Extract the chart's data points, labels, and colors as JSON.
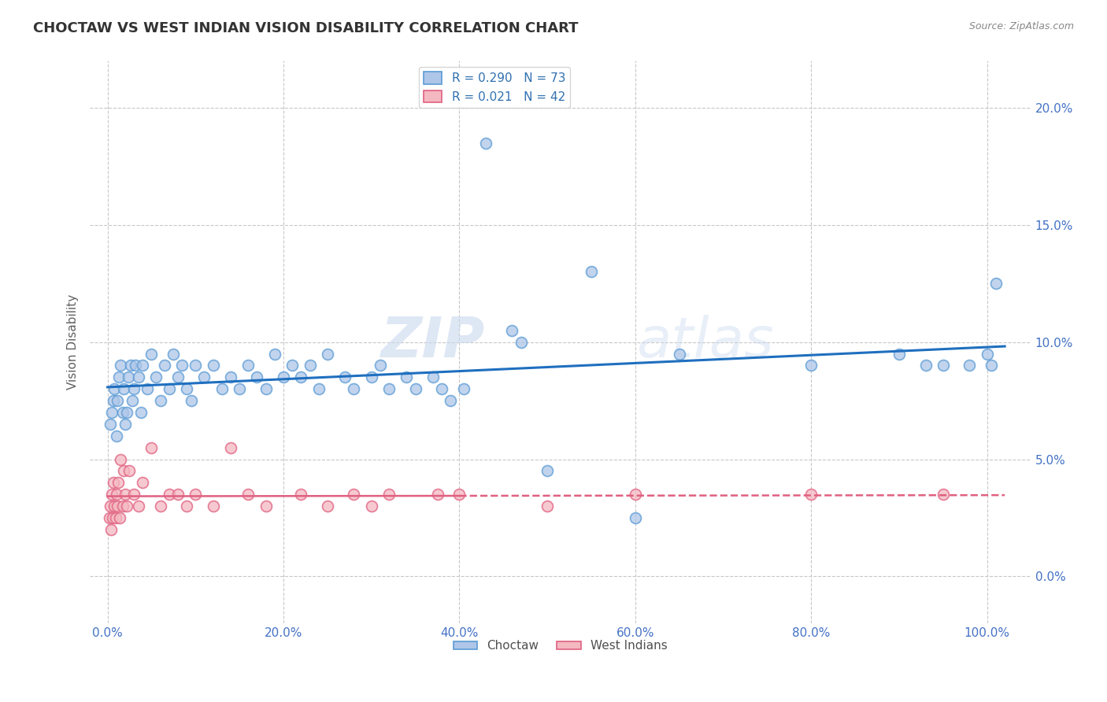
{
  "title": "CHOCTAW VS WEST INDIAN VISION DISABILITY CORRELATION CHART",
  "source": "Source: ZipAtlas.com",
  "xlabel_vals": [
    0,
    20,
    40,
    60,
    80,
    100
  ],
  "ylabel": "Vision Disability",
  "ylabel_vals": [
    0,
    5,
    10,
    15,
    20
  ],
  "xlim": [
    -2,
    105
  ],
  "ylim": [
    -2,
    22
  ],
  "legend_entry1": "R = 0.290   N = 73",
  "legend_entry2": "R = 0.021   N = 42",
  "legend_labels": [
    "Choctaw",
    "West Indians"
  ],
  "choctaw_x": [
    0.3,
    0.5,
    0.7,
    0.8,
    1.0,
    1.1,
    1.3,
    1.5,
    1.7,
    1.8,
    2.0,
    2.2,
    2.4,
    2.6,
    2.8,
    3.0,
    3.2,
    3.5,
    3.8,
    4.0,
    4.5,
    5.0,
    5.5,
    6.0,
    6.5,
    7.0,
    7.5,
    8.0,
    8.5,
    9.0,
    9.5,
    10.0,
    11.0,
    12.0,
    13.0,
    14.0,
    15.0,
    16.0,
    17.0,
    18.0,
    19.0,
    20.0,
    21.0,
    22.0,
    23.0,
    24.0,
    25.0,
    27.0,
    28.0,
    30.0,
    31.0,
    32.0,
    34.0,
    35.0,
    37.0,
    38.0,
    39.0,
    40.5,
    43.0,
    46.0,
    47.0,
    50.0,
    55.0,
    60.0,
    65.0,
    80.0,
    90.0,
    93.0,
    95.0,
    98.0,
    100.0,
    100.5,
    101.0
  ],
  "choctaw_y": [
    6.5,
    7.0,
    7.5,
    8.0,
    6.0,
    7.5,
    8.5,
    9.0,
    7.0,
    8.0,
    6.5,
    7.0,
    8.5,
    9.0,
    7.5,
    8.0,
    9.0,
    8.5,
    7.0,
    9.0,
    8.0,
    9.5,
    8.5,
    7.5,
    9.0,
    8.0,
    9.5,
    8.5,
    9.0,
    8.0,
    7.5,
    9.0,
    8.5,
    9.0,
    8.0,
    8.5,
    8.0,
    9.0,
    8.5,
    8.0,
    9.5,
    8.5,
    9.0,
    8.5,
    9.0,
    8.0,
    9.5,
    8.5,
    8.0,
    8.5,
    9.0,
    8.0,
    8.5,
    8.0,
    8.5,
    8.0,
    7.5,
    8.0,
    18.5,
    10.5,
    10.0,
    4.5,
    13.0,
    2.5,
    9.5,
    9.0,
    9.5,
    9.0,
    9.0,
    9.0,
    9.5,
    9.0,
    12.5
  ],
  "west_indian_x": [
    0.2,
    0.3,
    0.4,
    0.5,
    0.6,
    0.7,
    0.8,
    0.9,
    1.0,
    1.1,
    1.2,
    1.4,
    1.5,
    1.7,
    1.8,
    2.0,
    2.2,
    2.5,
    3.0,
    3.5,
    4.0,
    5.0,
    6.0,
    7.0,
    8.0,
    9.0,
    10.0,
    12.0,
    14.0,
    16.0,
    18.0,
    22.0,
    25.0,
    28.0,
    30.0,
    32.0,
    37.5,
    40.0,
    50.0,
    60.0,
    80.0,
    95.0
  ],
  "west_indian_y": [
    2.5,
    3.0,
    2.0,
    3.5,
    2.5,
    4.0,
    3.0,
    2.5,
    3.5,
    3.0,
    4.0,
    2.5,
    5.0,
    3.0,
    4.5,
    3.5,
    3.0,
    4.5,
    3.5,
    3.0,
    4.0,
    5.5,
    3.0,
    3.5,
    3.5,
    3.0,
    3.5,
    3.0,
    5.5,
    3.5,
    3.0,
    3.5,
    3.0,
    3.5,
    3.0,
    3.5,
    3.5,
    3.5,
    3.0,
    3.5,
    3.5,
    3.5
  ],
  "choctaw_color": "#5b9bd5",
  "choctaw_face": "#aec6e8",
  "west_indian_color": "#e06080",
  "west_indian_face": "#f4b8c1",
  "reg_choctaw_color": "#1f6fbf",
  "reg_west_indian_color": "#e06080",
  "background_color": "#ffffff",
  "grid_color": "#c8c8c8",
  "watermark_zip": "ZIP",
  "watermark_atlas": "atlas",
  "title_color": "#333333",
  "title_fontsize": 13,
  "axis_label_color": "#606060",
  "tick_color": "#4472c4",
  "source_color": "#888888"
}
